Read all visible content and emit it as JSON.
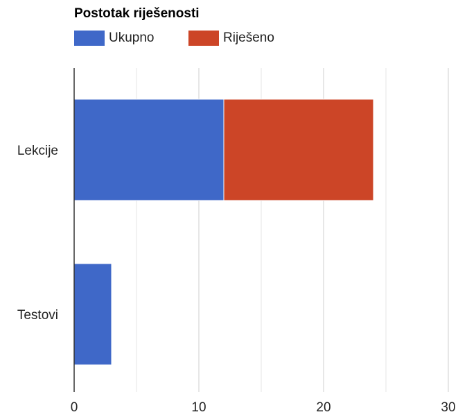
{
  "chart_data": {
    "type": "bar",
    "orientation": "horizontal",
    "stacked": true,
    "title": "Postotak riješenosti",
    "categories": [
      "Lekcije",
      "Testovi"
    ],
    "series": [
      {
        "name": "Ukupno",
        "values": [
          12,
          3
        ],
        "color": "#3f68c8"
      },
      {
        "name": "Riješeno",
        "values": [
          12,
          0
        ],
        "color": "#cc4527"
      }
    ],
    "xlim": [
      0,
      30
    ],
    "xticks": [
      0,
      10,
      20,
      30
    ],
    "grid": true,
    "legend_position": "top-left"
  }
}
